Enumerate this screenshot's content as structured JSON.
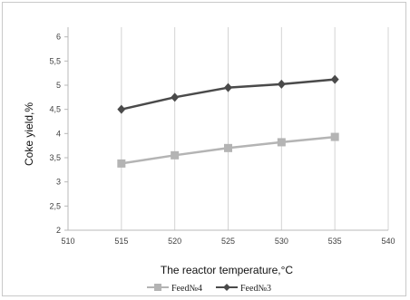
{
  "chart_data": {
    "type": "line",
    "title": "",
    "xlabel": "The reactor temperature,°C",
    "ylabel": "Coke yield,%",
    "x_ticks": [
      "510",
      "515",
      "520",
      "525",
      "530",
      "535",
      "540"
    ],
    "y_ticks": [
      "2",
      "2,5",
      "3",
      "3,5",
      "4",
      "4,5",
      "5",
      "5,5",
      "6"
    ],
    "xlim": [
      510,
      540
    ],
    "ylim": [
      2,
      6.2
    ],
    "grid": "vertical",
    "legend_position": "bottom",
    "series": [
      {
        "name": "Feed№4",
        "color": "#b4b4b4",
        "marker": "square",
        "x": [
          515,
          520,
          525,
          530,
          535
        ],
        "y": [
          3.38,
          3.55,
          3.7,
          3.82,
          3.93
        ]
      },
      {
        "name": "Feed№3",
        "color": "#4a4a4a",
        "marker": "diamond",
        "x": [
          515,
          520,
          525,
          530,
          535
        ],
        "y": [
          4.5,
          4.75,
          4.95,
          5.02,
          5.12
        ]
      }
    ]
  }
}
